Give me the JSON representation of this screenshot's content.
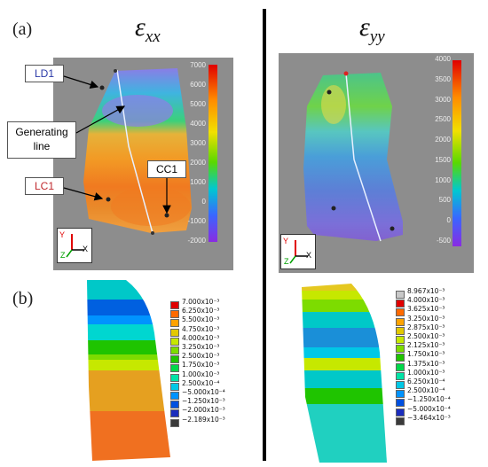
{
  "labels": {
    "a": "(a)",
    "b": "(b)"
  },
  "titles": {
    "exx": {
      "eps": "ε",
      "sub": "xx"
    },
    "eyy": {
      "eps": "ε",
      "sub": "yy"
    }
  },
  "callouts": {
    "ld1": "LD1",
    "generating_line": [
      "Generating",
      "line"
    ],
    "lc1": "LC1",
    "cc1": "CC1"
  },
  "axes_labels": {
    "y": "Y",
    "z": "Z",
    "x": "X"
  },
  "dic_colorbar_left": [
    "7000",
    "6000",
    "5000",
    "4000",
    "3000",
    "2000",
    "1000",
    "0",
    "-1000",
    "-2000"
  ],
  "dic_colorbar_right": [
    "4000",
    "3500",
    "3000",
    "2500",
    "2000",
    "1500",
    "1000",
    "500",
    "0",
    "-500"
  ],
  "fe_legend_left": [
    {
      "label": "7.000x10⁻³",
      "color": "#e00000"
    },
    {
      "label": "6.250x10⁻³",
      "color": "#ff6a00"
    },
    {
      "label": "5.500x10⁻³",
      "color": "#ffa300"
    },
    {
      "label": "4.750x10⁻³",
      "color": "#e3c900"
    },
    {
      "label": "4.000x10⁻³",
      "color": "#c6e800"
    },
    {
      "label": "3.250x10⁻³",
      "color": "#7ddc00"
    },
    {
      "label": "2.500x10⁻³",
      "color": "#1fc400"
    },
    {
      "label": "1.750x10⁻³",
      "color": "#00d84a"
    },
    {
      "label": "1.000x10⁻³",
      "color": "#00e3a6"
    },
    {
      "label": "2.500x10⁻⁴",
      "color": "#00c8e6"
    },
    {
      "label": "−5.000x10⁻⁴",
      "color": "#0093ff"
    },
    {
      "label": "−1.250x10⁻³",
      "color": "#0050e0"
    },
    {
      "label": "−2.000x10⁻³",
      "color": "#1b2dbd"
    },
    {
      "label": "−2.189x10⁻³",
      "color": "#3a3a3a"
    }
  ],
  "fe_legend_right": [
    {
      "label": "8.967x10⁻³",
      "color": "#c8c8c8"
    },
    {
      "label": "4.000x10⁻³",
      "color": "#e00000"
    },
    {
      "label": "3.625x10⁻³",
      "color": "#ff6a00"
    },
    {
      "label": "3.250x10⁻³",
      "color": "#ffa300"
    },
    {
      "label": "2.875x10⁻³",
      "color": "#e3c900"
    },
    {
      "label": "2.500x10⁻³",
      "color": "#c6e800"
    },
    {
      "label": "2.125x10⁻³",
      "color": "#7ddc00"
    },
    {
      "label": "1.750x10⁻³",
      "color": "#1fc400"
    },
    {
      "label": "1.375x10⁻³",
      "color": "#00d84a"
    },
    {
      "label": "1.000x10⁻³",
      "color": "#00e3a6"
    },
    {
      "label": "6.250x10⁻⁴",
      "color": "#00c8e6"
    },
    {
      "label": "2.500x10⁻⁴",
      "color": "#0093ff"
    },
    {
      "label": "−1.250x10⁻⁴",
      "color": "#0050e0"
    },
    {
      "label": "−5.000x10⁻⁴",
      "color": "#1b2dbd"
    },
    {
      "label": "−3.464x10⁻³",
      "color": "#3a3a3a"
    }
  ],
  "colors": {
    "callout_blue": "#2b3aa8",
    "callout_red": "#c0282d",
    "background_photo": "#8d8d8d"
  }
}
